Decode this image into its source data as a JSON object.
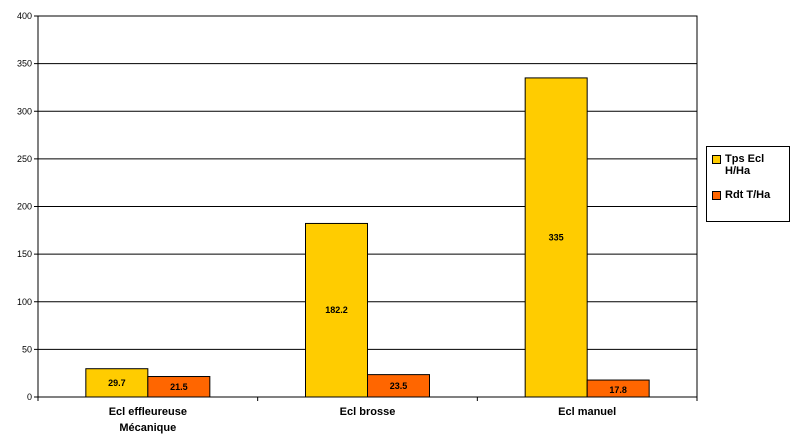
{
  "chart_data": {
    "type": "bar",
    "categories": [
      "Ecl effleureuse Mécanique",
      "Ecl brosse",
      "Ecl manuel"
    ],
    "category_lines": [
      [
        "Ecl effleureuse",
        "Mécanique"
      ],
      [
        "Ecl brosse"
      ],
      [
        "Ecl manuel"
      ]
    ],
    "series": [
      {
        "name": "Tps Ecl H/Ha",
        "values": [
          29.7,
          182.2,
          335
        ],
        "labels": [
          "29.7",
          "182.2",
          "335"
        ],
        "color": "#FFCC00"
      },
      {
        "name": "Rdt T/Ha",
        "values": [
          21.5,
          23.5,
          17.8
        ],
        "labels": [
          "21.5",
          "23.5",
          "17.8"
        ],
        "color": "#FF6600"
      }
    ],
    "yticks": [
      "0",
      "50",
      "100",
      "150",
      "200",
      "250",
      "300",
      "350",
      "400"
    ],
    "ylim": [
      0,
      400
    ],
    "grid": true,
    "legend": "right"
  }
}
